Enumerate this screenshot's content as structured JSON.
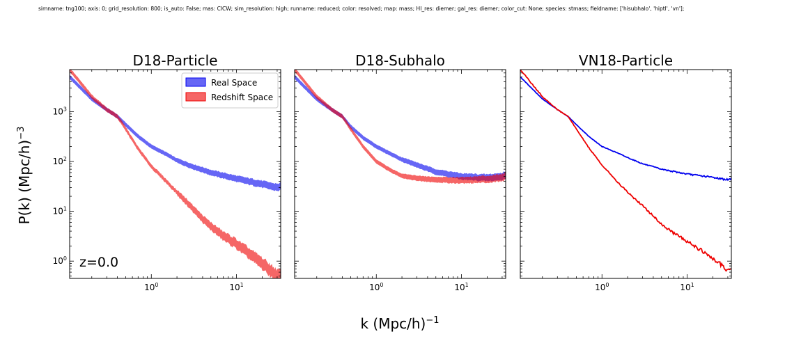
{
  "header": {
    "caption": "simname: tng100; axis: 0; grid_resolution: 800; is_auto: False; mas: CICW; sim_resolution: high; runname: reduced; color: resolved; map: mass; HI_res: diemer; gal_res: diemer; color_cut: None; species: stmass; fieldname: ['hisubhalo', 'hiptl', 'vn'];"
  },
  "figure": {
    "xlabel": "k (Mpc/h)",
    "xlabel_exp": "−1",
    "ylabel": "P(k) (Mpc/h)",
    "ylabel_exp": "−3",
    "annotation": "z=0.0",
    "xtick_labels": [
      {
        "base": "10",
        "exp": "0"
      },
      {
        "base": "10",
        "exp": "1"
      }
    ],
    "ytick_labels": [
      {
        "base": "10",
        "exp": "0"
      },
      {
        "base": "10",
        "exp": "1"
      },
      {
        "base": "10",
        "exp": "2"
      },
      {
        "base": "10",
        "exp": "3"
      }
    ]
  },
  "colors": {
    "real": "#0000ee",
    "redshift": "#ee0000"
  },
  "chart_data": [
    {
      "type": "line",
      "title": "D18-Particle",
      "xscale": "log",
      "yscale": "log",
      "xlim": [
        0.11,
        33
      ],
      "ylim": [
        0.45,
        7000
      ],
      "style": "band",
      "legend": {
        "placement": "top-right",
        "entries": [
          "Real Space",
          "Redshift Space"
        ]
      },
      "series": [
        {
          "name": "Real Space",
          "x": [
            0.11,
            0.2,
            0.3,
            0.4,
            0.5,
            0.7,
            1.0,
            1.5,
            2.0,
            3.0,
            5.0,
            10.0,
            20.0,
            30.0,
            33.0
          ],
          "y": [
            5000,
            1800,
            1100,
            800,
            550,
            320,
            200,
            140,
            105,
            80,
            60,
            45,
            35,
            30,
            32
          ]
        },
        {
          "name": "Redshift Space",
          "x": [
            0.11,
            0.2,
            0.3,
            0.4,
            0.5,
            0.7,
            1.0,
            1.5,
            2.0,
            3.0,
            4.0,
            5.0,
            7.0,
            10.0,
            15.0,
            20.0,
            25.0,
            30.0,
            33.0
          ],
          "y": [
            7000,
            2000,
            1100,
            800,
            450,
            180,
            80,
            40,
            24,
            12,
            7,
            5,
            3.2,
            2.2,
            1.3,
            0.9,
            0.65,
            0.5,
            0.5
          ]
        }
      ]
    },
    {
      "type": "line",
      "title": "D18-Subhalo",
      "xscale": "log",
      "yscale": "log",
      "xlim": [
        0.11,
        33
      ],
      "ylim": [
        0.45,
        7000
      ],
      "style": "band",
      "series": [
        {
          "name": "Real Space",
          "x": [
            0.11,
            0.2,
            0.3,
            0.4,
            0.5,
            0.7,
            1.0,
            1.5,
            2.0,
            3.0,
            5.0,
            10.0,
            20.0,
            30.0,
            33.0
          ],
          "y": [
            5000,
            1800,
            1100,
            800,
            500,
            300,
            200,
            140,
            110,
            85,
            62,
            50,
            47,
            50,
            55
          ]
        },
        {
          "name": "Redshift Space",
          "x": [
            0.11,
            0.2,
            0.3,
            0.4,
            0.5,
            0.7,
            1.0,
            1.5,
            2.0,
            3.0,
            5.0,
            10.0,
            20.0,
            30.0,
            33.0
          ],
          "y": [
            7000,
            2000,
            1100,
            800,
            450,
            200,
            100,
            65,
            52,
            46,
            43,
            42,
            44,
            48,
            52
          ]
        }
      ]
    },
    {
      "type": "line",
      "title": "VN18-Particle",
      "xscale": "log",
      "yscale": "log",
      "xlim": [
        0.11,
        33
      ],
      "ylim": [
        0.45,
        7000
      ],
      "style": "line",
      "series": [
        {
          "name": "Real Space",
          "x": [
            0.11,
            0.2,
            0.3,
            0.4,
            0.5,
            0.7,
            1.0,
            1.5,
            2.0,
            3.0,
            5.0,
            10.0,
            20.0,
            30.0,
            33.0
          ],
          "y": [
            5000,
            1800,
            1100,
            800,
            550,
            320,
            200,
            150,
            120,
            90,
            70,
            56,
            48,
            43,
            45
          ]
        },
        {
          "name": "Redshift Space",
          "x": [
            0.11,
            0.2,
            0.3,
            0.4,
            0.5,
            0.7,
            1.0,
            1.5,
            2.0,
            3.0,
            4.0,
            5.0,
            7.0,
            10.0,
            15.0,
            20.0,
            25.0,
            30.0,
            33.0
          ],
          "y": [
            7000,
            2000,
            1100,
            800,
            450,
            190,
            85,
            40,
            24,
            13,
            8,
            5.5,
            3.6,
            2.5,
            1.6,
            1.1,
            0.85,
            0.65,
            0.65
          ]
        }
      ]
    }
  ]
}
